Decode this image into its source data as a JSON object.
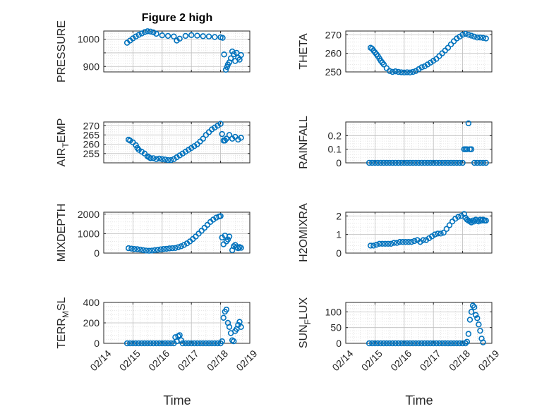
{
  "figure": {
    "title": "Figure 2 high"
  },
  "style": {
    "marker_color": "#0072BD",
    "grid_color": "#bfbfbf",
    "axis_color": "#262626"
  },
  "chart_data": [
    {
      "type": "scatter",
      "ylabel": "PRESSURE",
      "ylabel_sub": "",
      "ylabel_tail": "",
      "xlim": [
        0,
        5
      ],
      "ylim": [
        880,
        1030
      ],
      "yticks": [
        900,
        950,
        1000
      ],
      "ytick_labels": [
        "900",
        "",
        "1000"
      ],
      "xtick_labels": [
        "02/14",
        "02/15",
        "02/16",
        "02/17",
        "02/18",
        "02/19"
      ],
      "grid": true,
      "minor_grid": true,
      "x": [
        0.8,
        0.9,
        1.0,
        1.1,
        1.2,
        1.3,
        1.4,
        1.5,
        1.6,
        1.7,
        1.8,
        2.0,
        2.2,
        2.4,
        2.5,
        2.6,
        2.8,
        3.0,
        3.2,
        3.4,
        3.6,
        3.8,
        4.0,
        4.07,
        4.12,
        4.18,
        4.22,
        4.25,
        4.3,
        4.35,
        4.4,
        4.45,
        4.5,
        4.55,
        4.6,
        4.65,
        4.7
      ],
      "y": [
        987,
        995,
        1003,
        1010,
        1016,
        1021,
        1026,
        1029,
        1028,
        1025,
        1020,
        1014,
        1012,
        1010,
        995,
        1002,
        1012,
        1015,
        1013,
        1011,
        1010,
        1008,
        1007,
        1005,
        944,
        888,
        898,
        907,
        915,
        930,
        955,
        945,
        920,
        950,
        932,
        925,
        942
      ]
    },
    {
      "type": "scatter",
      "ylabel": "THETA",
      "ylabel_sub": "",
      "ylabel_tail": "",
      "xlim": [
        0,
        5
      ],
      "ylim": [
        250,
        272
      ],
      "yticks": [
        250,
        260,
        270
      ],
      "ytick_labels": [
        "250",
        "260",
        "270"
      ],
      "xtick_labels": [
        "02/14",
        "02/15",
        "02/16",
        "02/17",
        "02/18",
        "02/19"
      ],
      "grid": true,
      "minor_grid": true,
      "x": [
        0.85,
        0.9,
        0.95,
        1.0,
        1.05,
        1.1,
        1.15,
        1.2,
        1.25,
        1.3,
        1.4,
        1.5,
        1.6,
        1.7,
        1.8,
        1.9,
        2.0,
        2.1,
        2.2,
        2.3,
        2.4,
        2.5,
        2.6,
        2.7,
        2.8,
        2.9,
        3.0,
        3.1,
        3.2,
        3.3,
        3.4,
        3.5,
        3.6,
        3.7,
        3.8,
        3.9,
        4.0,
        4.1,
        4.2,
        4.3,
        4.4,
        4.5,
        4.6,
        4.7,
        4.8
      ],
      "y": [
        263,
        262.5,
        261.5,
        260.5,
        259.5,
        258.5,
        257.2,
        256,
        255,
        254,
        252,
        250.5,
        250,
        250.3,
        250,
        249.8,
        249.7,
        249.8,
        249.7,
        250,
        250.5,
        251.5,
        252.5,
        253,
        254,
        255,
        256,
        257,
        258.5,
        260,
        261.5,
        263,
        264.8,
        266.5,
        268,
        269,
        270,
        270.5,
        270,
        269.5,
        269,
        268.5,
        268.5,
        268.3,
        268
      ]
    },
    {
      "type": "scatter",
      "ylabel": "AIR",
      "ylabel_sub": "T",
      "ylabel_tail": "EMP",
      "xlim": [
        0,
        5
      ],
      "ylim": [
        250,
        272
      ],
      "yticks": [
        255,
        260,
        265,
        270
      ],
      "ytick_labels": [
        "255",
        "260",
        "265",
        "270"
      ],
      "xtick_labels": [
        "02/14",
        "02/15",
        "02/16",
        "02/17",
        "02/18",
        "02/19"
      ],
      "grid": true,
      "minor_grid": true,
      "x": [
        0.85,
        0.9,
        1.0,
        1.1,
        1.15,
        1.2,
        1.3,
        1.4,
        1.5,
        1.55,
        1.6,
        1.7,
        1.8,
        1.9,
        2.0,
        2.1,
        2.2,
        2.3,
        2.4,
        2.5,
        2.6,
        2.7,
        2.8,
        2.9,
        3.0,
        3.1,
        3.2,
        3.3,
        3.4,
        3.5,
        3.6,
        3.7,
        3.8,
        3.9,
        4.0,
        4.05,
        4.1,
        4.15,
        4.2,
        4.3,
        4.4,
        4.5,
        4.6,
        4.7
      ],
      "y": [
        262.5,
        262,
        261,
        259.5,
        258,
        257,
        256,
        255,
        253.5,
        253,
        252.5,
        252.5,
        252,
        252.3,
        252,
        251.8,
        251.5,
        251.5,
        252,
        253,
        254,
        255,
        256,
        257,
        258,
        259,
        260,
        261.5,
        263,
        265,
        266.5,
        268,
        269,
        270,
        271,
        265.5,
        262,
        262,
        263,
        265,
        263,
        264,
        262.5,
        263.5
      ]
    },
    {
      "type": "scatter",
      "ylabel": "RAINFALL",
      "ylabel_sub": "",
      "ylabel_tail": "",
      "xlim": [
        0,
        5
      ],
      "ylim": [
        0,
        0.3
      ],
      "yticks": [
        0,
        0.1,
        0.2
      ],
      "ytick_labels": [
        "0",
        "0.1",
        "0.2"
      ],
      "xtick_labels": [
        "02/14",
        "02/15",
        "02/16",
        "02/17",
        "02/18",
        "02/19"
      ],
      "grid": true,
      "minor_grid": true,
      "x": [
        0.8,
        0.9,
        1.0,
        1.1,
        1.2,
        1.3,
        1.4,
        1.5,
        1.6,
        1.7,
        1.8,
        1.9,
        2.0,
        2.1,
        2.2,
        2.3,
        2.4,
        2.5,
        2.6,
        2.7,
        2.8,
        2.9,
        3.0,
        3.1,
        3.2,
        3.3,
        3.4,
        3.5,
        3.6,
        3.7,
        3.8,
        3.9,
        4.0,
        4.05,
        4.1,
        4.15,
        4.2,
        4.25,
        4.3,
        4.4,
        4.5,
        4.6,
        4.7,
        4.8
      ],
      "y": [
        0,
        0,
        0,
        0,
        0,
        0,
        0,
        0,
        0,
        0,
        0,
        0,
        0,
        0,
        0,
        0,
        0,
        0,
        0,
        0,
        0,
        0,
        0,
        0,
        0,
        0,
        0,
        0,
        0,
        0,
        0,
        0,
        0,
        0.1,
        0.1,
        0.1,
        0.29,
        0.1,
        0.1,
        0,
        0,
        0,
        0,
        0
      ]
    },
    {
      "type": "scatter",
      "ylabel": "MIXDEPTH",
      "ylabel_sub": "",
      "ylabel_tail": "",
      "xlim": [
        0,
        5
      ],
      "ylim": [
        0,
        2100
      ],
      "yticks": [
        0,
        1000,
        2000
      ],
      "ytick_labels": [
        "0",
        "1000",
        "2000"
      ],
      "xtick_labels": [
        "02/14",
        "02/15",
        "02/16",
        "02/17",
        "02/18",
        "02/19"
      ],
      "grid": true,
      "minor_grid": true,
      "x": [
        0.85,
        0.95,
        1.05,
        1.15,
        1.25,
        1.35,
        1.45,
        1.55,
        1.65,
        1.75,
        1.85,
        1.95,
        2.05,
        2.15,
        2.25,
        2.35,
        2.45,
        2.55,
        2.65,
        2.75,
        2.85,
        2.95,
        3.05,
        3.15,
        3.25,
        3.35,
        3.45,
        3.55,
        3.65,
        3.75,
        3.85,
        3.95,
        4.0,
        4.05,
        4.1,
        4.15,
        4.2,
        4.25,
        4.3,
        4.4,
        4.45,
        4.5,
        4.55,
        4.6,
        4.65,
        4.7
      ],
      "y": [
        250,
        230,
        210,
        200,
        180,
        150,
        130,
        120,
        130,
        150,
        170,
        190,
        210,
        220,
        240,
        250,
        260,
        300,
        350,
        420,
        500,
        600,
        720,
        850,
        1000,
        1150,
        1300,
        1450,
        1600,
        1720,
        1820,
        1880,
        1900,
        800,
        450,
        900,
        600,
        700,
        850,
        150,
        350,
        420,
        300,
        250,
        310,
        270
      ]
    },
    {
      "type": "scatter",
      "ylabel": "H2OMIXRA",
      "ylabel_sub": "",
      "ylabel_tail": "",
      "xlim": [
        0,
        5
      ],
      "ylim": [
        0,
        2.2
      ],
      "yticks": [
        0,
        1,
        2
      ],
      "ytick_labels": [
        "0",
        "1",
        "2"
      ],
      "xtick_labels": [
        "02/14",
        "02/15",
        "02/16",
        "02/17",
        "02/18",
        "02/19"
      ],
      "grid": true,
      "minor_grid": true,
      "x": [
        0.85,
        0.95,
        1.05,
        1.15,
        1.25,
        1.35,
        1.45,
        1.55,
        1.65,
        1.75,
        1.85,
        1.95,
        2.05,
        2.15,
        2.25,
        2.35,
        2.45,
        2.55,
        2.65,
        2.75,
        2.85,
        2.95,
        3.05,
        3.15,
        3.25,
        3.35,
        3.45,
        3.55,
        3.65,
        3.75,
        3.85,
        3.95,
        4.05,
        4.1,
        4.15,
        4.2,
        4.25,
        4.3,
        4.35,
        4.4,
        4.45,
        4.5,
        4.55,
        4.6,
        4.65,
        4.7,
        4.75,
        4.8
      ],
      "y": [
        0.4,
        0.4,
        0.45,
        0.5,
        0.5,
        0.5,
        0.5,
        0.5,
        0.55,
        0.55,
        0.6,
        0.6,
        0.6,
        0.6,
        0.6,
        0.65,
        0.7,
        0.6,
        0.7,
        0.7,
        0.8,
        0.9,
        1.0,
        1.05,
        1.05,
        1.1,
        1.3,
        1.5,
        1.7,
        1.85,
        1.95,
        2.0,
        2.1,
        1.9,
        1.8,
        1.75,
        1.7,
        1.65,
        1.75,
        1.7,
        1.8,
        1.75,
        1.7,
        1.8,
        1.75,
        1.8,
        1.75,
        1.75
      ]
    },
    {
      "type": "scatter",
      "ylabel": "TERR",
      "ylabel_sub": "M",
      "ylabel_tail": "SL",
      "xlim": [
        0,
        5
      ],
      "ylim": [
        0,
        400
      ],
      "yticks": [
        0,
        200,
        400
      ],
      "ytick_labels": [
        "0",
        "200",
        "400"
      ],
      "xtick_labels": [
        "02/14",
        "02/15",
        "02/16",
        "02/17",
        "02/18",
        "02/19"
      ],
      "grid": true,
      "minor_grid": true,
      "x": [
        0.8,
        0.9,
        1.0,
        1.1,
        1.2,
        1.3,
        1.4,
        1.5,
        1.6,
        1.7,
        1.8,
        1.9,
        2.0,
        2.1,
        2.2,
        2.3,
        2.4,
        2.45,
        2.5,
        2.55,
        2.6,
        2.65,
        2.7,
        2.8,
        2.9,
        3.0,
        3.1,
        3.2,
        3.3,
        3.4,
        3.5,
        3.6,
        3.7,
        3.8,
        3.9,
        4.0,
        4.05,
        4.1,
        4.15,
        4.2,
        4.25,
        4.3,
        4.35,
        4.4,
        4.45,
        4.5,
        4.55,
        4.6,
        4.65,
        4.7
      ],
      "y": [
        0,
        0,
        0,
        0,
        0,
        0,
        0,
        0,
        0,
        0,
        0,
        0,
        0,
        0,
        0,
        0,
        0,
        60,
        20,
        70,
        80,
        30,
        0,
        0,
        0,
        0,
        0,
        0,
        0,
        0,
        0,
        0,
        0,
        0,
        0,
        0,
        20,
        250,
        310,
        330,
        200,
        160,
        100,
        30,
        20,
        120,
        140,
        180,
        210,
        160
      ]
    },
    {
      "type": "scatter",
      "ylabel": "SUN",
      "ylabel_sub": "F",
      "ylabel_tail": "LUX",
      "xlim": [
        0,
        5
      ],
      "ylim": [
        0,
        130
      ],
      "yticks": [
        0,
        50,
        100
      ],
      "ytick_labels": [
        "0",
        "50",
        "100"
      ],
      "xtick_labels": [
        "02/14",
        "02/15",
        "02/16",
        "02/17",
        "02/18",
        "02/19"
      ],
      "grid": true,
      "minor_grid": true,
      "x": [
        0.8,
        0.9,
        1.0,
        1.1,
        1.2,
        1.3,
        1.4,
        1.5,
        1.6,
        1.7,
        1.8,
        1.9,
        2.0,
        2.1,
        2.2,
        2.3,
        2.4,
        2.5,
        2.6,
        2.7,
        2.8,
        2.9,
        3.0,
        3.1,
        3.2,
        3.3,
        3.4,
        3.5,
        3.6,
        3.7,
        3.8,
        3.9,
        4.0,
        4.1,
        4.15,
        4.2,
        4.25,
        4.3,
        4.35,
        4.4,
        4.45,
        4.5,
        4.55,
        4.6,
        4.65,
        4.7
      ],
      "y": [
        0,
        0,
        0,
        0,
        0,
        0,
        0,
        0,
        0,
        0,
        0,
        0,
        0,
        0,
        0,
        0,
        0,
        0,
        0,
        0,
        0,
        0,
        0,
        0,
        0,
        0,
        0,
        0,
        0,
        0,
        0,
        0,
        0,
        0,
        5,
        30,
        75,
        100,
        120,
        115,
        90,
        80,
        60,
        40,
        15,
        3
      ]
    }
  ],
  "xlabels": [
    "Time",
    "Time"
  ]
}
